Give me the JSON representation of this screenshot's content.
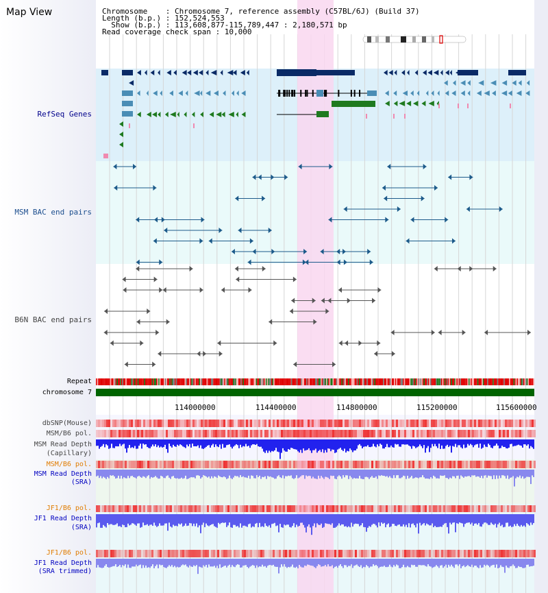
{
  "view_title": "Map View",
  "header": {
    "chromosome": "Chromosome    : Chromosome 7, reference assembly (C57BL/6J) (Build 37)",
    "length": "Length (b.p.) : 152,524,553",
    "show": "  Show (b.p.) : 113,608,877-115,789,447 : 2,180,571 bp",
    "coverage": "Read coverage check span : 10,000"
  },
  "tracks": {
    "refseq": "RefSeq Genes",
    "msm_bac": "MSM BAC end pairs",
    "b6n_bac": "B6N BAC end pairs",
    "repeat": "Repeat",
    "chromosome": "chromosome 7",
    "dbsnp": "dbSNP(Mouse)",
    "msm_b6_pol_1": "MSM/B6 pol.",
    "msm_depth_cap_1": "MSM Read Depth",
    "msm_depth_cap_2": "(Capillary)",
    "msm_b6_pol_2": "MSM/B6 pol.",
    "msm_depth_sra_1": "MSM Read Depth",
    "msm_depth_sra_2": "(SRA)",
    "jf1_b6_pol_1": "JF1/B6 pol.",
    "jf1_depth_sra_1": "JF1 Read Depth",
    "jf1_depth_sra_2": "(SRA)",
    "jf1_b6_pol_2": "JF1/B6 pol.",
    "jf1_depth_trim_1": "JF1 Read Depth",
    "jf1_depth_trim_2": "(SRA trimmed)"
  },
  "axis_ticks": [
    "114000000",
    "114400000",
    "114800000",
    "115200000",
    "115600000"
  ],
  "colors": {
    "highlight": "#f9d7f0",
    "refseq_bg": "#ddf0fa",
    "navy_gene": "#0a2a66",
    "steel_gene": "#4a8db5",
    "green_gene": "#1f7a1f",
    "msm_bac": "#1c5a8a",
    "b6n_bac": "#555555",
    "repeat_red": "#e00000",
    "chrom_green": "#006400",
    "pol_red": "#ee3333",
    "depth_blue": "#2222ee",
    "depth_lavender": "#8888ee"
  }
}
